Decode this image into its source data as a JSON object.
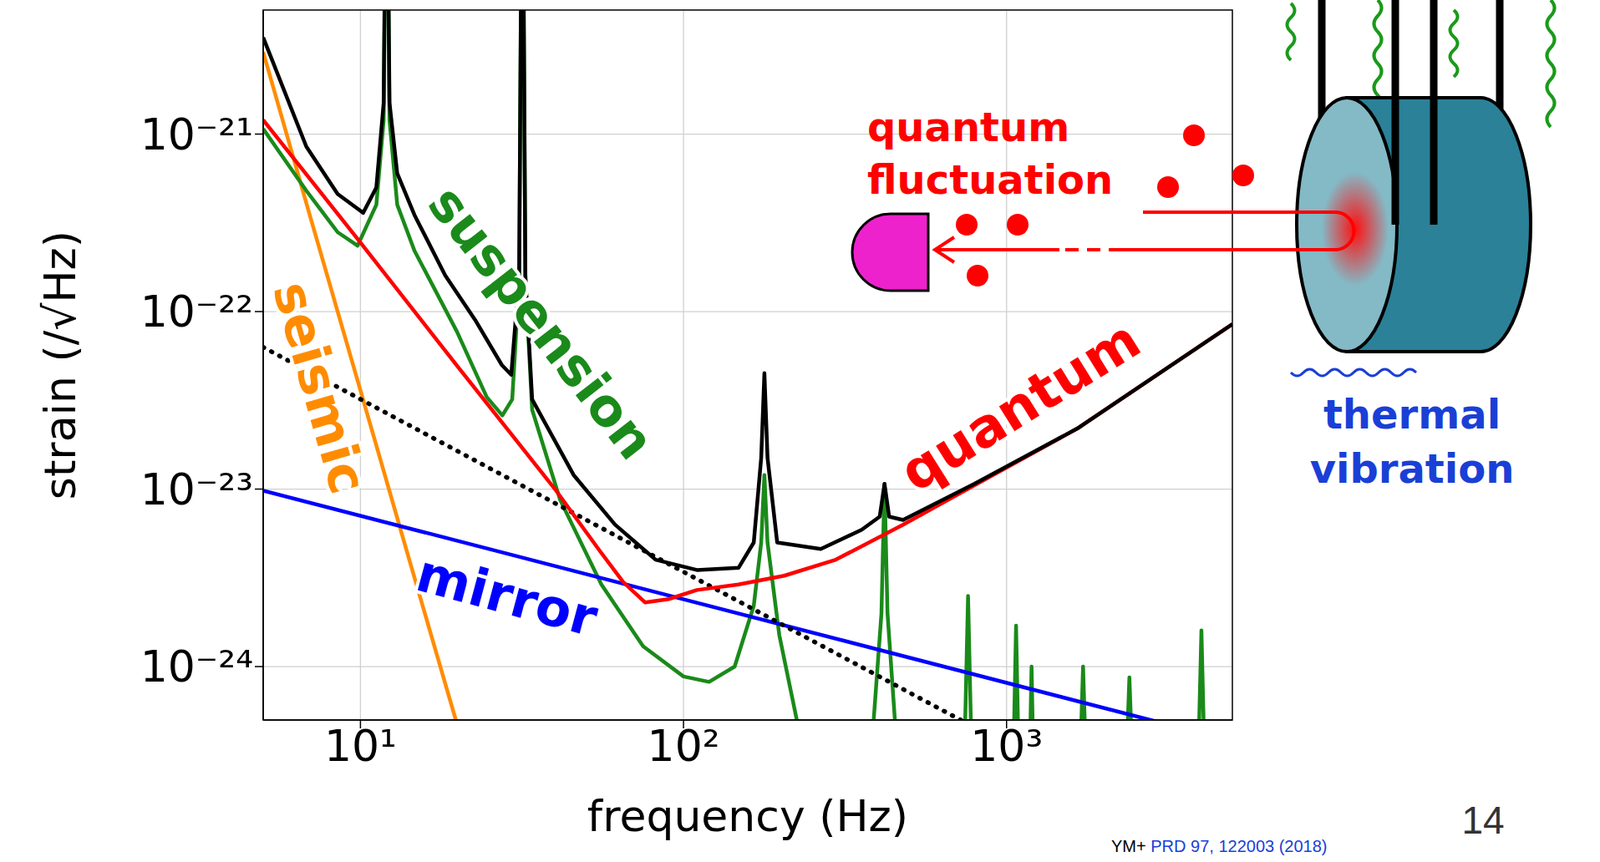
{
  "chart_data": {
    "type": "line",
    "log": true,
    "grid": true,
    "x_label": "frequency (Hz)",
    "y_label": "strain (/√Hz)",
    "xlim": [
      5,
      5000
    ],
    "ylim": [
      5e-25,
      5e-21
    ],
    "xticks": [
      {
        "value": 10,
        "label": "10¹"
      },
      {
        "value": 100,
        "label": "10²"
      },
      {
        "value": 1000,
        "label": "10³"
      }
    ],
    "yticks": [
      {
        "value": 1e-24,
        "label": "10⁻²⁴"
      },
      {
        "value": 1e-23,
        "label": "10⁻²³"
      },
      {
        "value": 1e-22,
        "label": "10⁻²²"
      },
      {
        "value": 1e-21,
        "label": "10⁻²¹"
      }
    ],
    "series": [
      {
        "name": "seismic",
        "color": "#ff8c00",
        "x": [
          5,
          7,
          10,
          14,
          20
        ],
        "values": [
          2.9e-21,
          3.4e-22,
          3.6e-23,
          4.3e-24,
          4.6e-25
        ]
      },
      {
        "name": "suspension",
        "color": "#1a8a1a",
        "x": [
          5,
          6.8,
          8.5,
          9.8,
          11.2,
          11.8,
          12.05,
          12.3,
          13,
          14.7,
          19.9,
          24.6,
          27.5,
          29.5,
          31,
          31.7,
          32.4,
          34,
          41.5,
          55.7,
          75,
          100,
          120,
          144,
          165,
          174,
          178,
          182,
          198,
          230,
          380,
          410,
          419,
          428,
          460,
          740,
          760,
          780,
          1050,
          1070,
          1090,
          1180,
          1195,
          1210,
          1690,
          1725,
          1760,
          2350,
          2400,
          2450,
          3920,
          4010,
          4100
        ],
        "values": [
          1.07e-21,
          4.8e-22,
          2.8e-22,
          2.35e-22,
          4e-22,
          1.2e-21,
          1e-19,
          1.2e-21,
          4e-22,
          2.2e-22,
          7.7e-23,
          3.3e-23,
          2.6e-23,
          3.2e-23,
          1.5e-22,
          1e-19,
          1.5e-22,
          2.8e-23,
          8.7e-24,
          2.9e-24,
          1.3e-24,
          8.8e-25,
          8.2e-25,
          1e-24,
          2.2e-24,
          5e-24,
          1.2e-23,
          5e-24,
          1.5e-24,
          4e-25,
          3e-25,
          2e-24,
          1.07e-23,
          2e-24,
          3e-25,
          3e-25,
          2.5e-24,
          3e-25,
          3e-25,
          1.7e-24,
          3e-25,
          3e-25,
          1e-24,
          3e-25,
          3e-25,
          1e-24,
          3e-25,
          3e-25,
          8.7e-25,
          3e-25,
          3e-25,
          1.6e-24,
          3e-25
        ]
      },
      {
        "name": "mirror",
        "color": "#0000ff",
        "x": [
          5,
          5000
        ],
        "values": [
          9.8e-24,
          3.8e-25
        ]
      },
      {
        "color": "#000000",
        "line_style": "dotted",
        "x": [
          5,
          5000
        ],
        "values": [
          6.3e-23,
          7.6e-26
        ]
      },
      {
        "name": "quantum",
        "color": "#ff0000",
        "x": [
          5,
          10,
          20,
          40,
          55,
          65,
          76,
          90,
          110,
          148,
          205,
          296,
          478,
          795,
          1660,
          5000
        ],
        "values": [
          1.2e-21,
          2.45e-22,
          4.9e-23,
          1e-23,
          4.5e-24,
          3e-24,
          2.3e-24,
          2.4e-24,
          2.7e-24,
          2.9e-24,
          3.25e-24,
          4e-24,
          6.3e-24,
          1.05e-23,
          2.2e-23,
          8.5e-23
        ]
      },
      {
        "color": "#000000",
        "x": [
          5,
          6.8,
          8.5,
          10.2,
          11.2,
          11.8,
          12.05,
          12.3,
          13,
          14.7,
          18.3,
          22.8,
          27.4,
          29.3,
          31,
          31.7,
          32.4,
          34,
          45.7,
          61.4,
          82,
          110,
          148,
          165,
          174,
          178,
          182,
          195,
          266,
          356,
          405,
          419,
          433,
          478,
          795,
          1660,
          5000
        ],
        "values": [
          3.5e-21,
          8.5e-22,
          4.6e-22,
          3.6e-22,
          5e-22,
          1.5e-21,
          1e-19,
          1.5e-21,
          6e-22,
          3.5e-22,
          1.6e-22,
          8.8e-23,
          5e-23,
          4.4e-23,
          1.6e-22,
          1e-19,
          1.6e-22,
          3.2e-23,
          1.2e-23,
          6.3e-24,
          4e-24,
          3.5e-24,
          3.6e-24,
          5e-24,
          1.5e-23,
          4.5e-23,
          1.5e-23,
          5e-24,
          4.6e-24,
          5.9e-24,
          7e-24,
          1.07e-23,
          7e-24,
          6.7e-24,
          1.07e-23,
          2.2e-23,
          8.5e-23
        ]
      }
    ],
    "annotations": [
      "quantum fluctuation",
      "thermal vibration"
    ],
    "page": "14",
    "source": "YM+ PRD 97, 122003 (2018)"
  }
}
